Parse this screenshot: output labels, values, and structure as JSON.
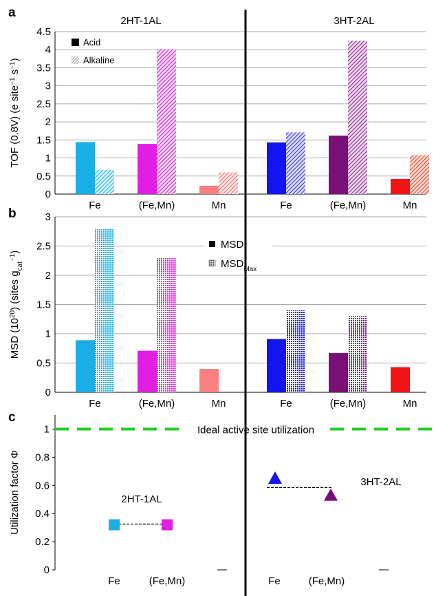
{
  "colors": {
    "fe_2ht": "#1aaee6",
    "femn_2ht": "#e11ee1",
    "mn_2ht": "#fa8080",
    "fe_3ht": "#1414f0",
    "femn_3ht": "#7a0f7a",
    "mn_3ht": "#f01414",
    "ideal": "#22cc22",
    "axis": "#000000",
    "grid": "#a8a8a8"
  },
  "panel_letters": [
    "a",
    "b",
    "c"
  ],
  "chart_data": [
    {
      "type": "bar",
      "panel": "a",
      "ylabel": "TOF (0.8V) (e site⁻¹ s⁻¹)",
      "ylim": [
        0,
        4.5
      ],
      "yticks": [
        "0",
        "0.5",
        "1",
        "1.5",
        "2",
        "2.5",
        "3",
        "3.5",
        "4",
        "4.5"
      ],
      "grid": true,
      "groups": [
        "2HT-1AL",
        "3HT-2AL"
      ],
      "categories": [
        "Fe",
        "(Fe,Mn)",
        "Mn",
        "Fe",
        "(Fe,Mn)",
        "Mn"
      ],
      "legend": [
        "Acid",
        "Alkaline"
      ],
      "legend_position": "top-left",
      "series": [
        {
          "name": "Acid",
          "values": [
            1.44,
            1.39,
            0.23,
            1.43,
            1.62,
            0.42
          ]
        },
        {
          "name": "Alkaline",
          "values": [
            0.67,
            4.02,
            0.6,
            1.71,
            4.25,
            1.08
          ]
        }
      ]
    },
    {
      "type": "bar",
      "panel": "b",
      "ylabel": "MSD (10²⁰) (sites g_cat⁻¹)",
      "ylim": [
        0,
        3
      ],
      "yticks": [
        "0",
        "0.5",
        "1",
        "1.5",
        "2",
        "2.5",
        "3"
      ],
      "grid": true,
      "categories": [
        "Fe",
        "(Fe,Mn)",
        "Mn",
        "Fe",
        "(Fe,Mn)",
        "Mn"
      ],
      "legend": [
        "MSD",
        "MSD"
      ],
      "legend_subscript": "Max",
      "legend_position": "top-center",
      "series": [
        {
          "name": "MSD",
          "values": [
            0.89,
            0.71,
            0.4,
            0.91,
            0.67,
            0.43
          ]
        },
        {
          "name": "MSDMax",
          "values": [
            2.8,
            2.3,
            null,
            1.4,
            1.3,
            null
          ]
        }
      ]
    },
    {
      "type": "scatter",
      "panel": "c",
      "ylabel": "Utilization factor Φ",
      "ylim": [
        0,
        1.1
      ],
      "yticks": [
        "0",
        "0.2",
        "0.4",
        "0.6",
        "0.8",
        "1"
      ],
      "categories": [
        "Fe",
        "(Fe,Mn)",
        "",
        "Fe",
        "(Fe,Mn)",
        ""
      ],
      "ideal_line": {
        "y": 1,
        "label": "Ideal active site utilization"
      },
      "groups": [
        {
          "label": "2HT-1AL",
          "marker": "square",
          "mean": 0.325,
          "points": [
            {
              "x": "Fe",
              "y": 0.32
            },
            {
              "x": "(Fe,Mn)",
              "y": 0.32
            }
          ]
        },
        {
          "label": "3HT-2AL",
          "marker": "triangle",
          "mean": 0.585,
          "points": [
            {
              "x": "Fe",
              "y": 0.65
            },
            {
              "x": "(Fe,Mn)",
              "y": 0.53
            }
          ]
        }
      ]
    }
  ]
}
